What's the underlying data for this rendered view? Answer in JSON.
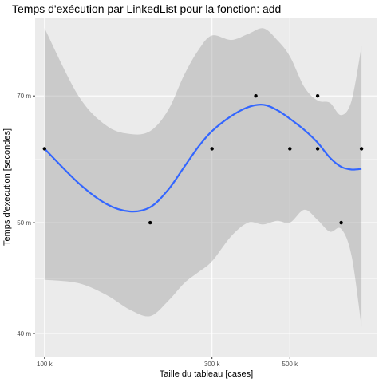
{
  "chart_data": {
    "type": "scatter",
    "title": "Temps d'exécution par LinkedList pour la fonction: add",
    "xlabel": "Taille du tableau [cases]",
    "ylabel": "Temps d'execution [secondes]",
    "x_scale": "log",
    "y_scale": "reciprocal",
    "xlim": [
      94000,
      888000
    ],
    "ylim": [
      38.4,
      93.0
    ],
    "x_ticks": [
      {
        "value": 100000,
        "label": "100 k"
      },
      {
        "value": 300000,
        "label": "300 k"
      },
      {
        "value": 500000,
        "label": "500 k"
      }
    ],
    "x_minor_ticks": [
      173000,
      387000,
      650000
    ],
    "y_ticks": [
      {
        "value": 40,
        "label": "40 m"
      },
      {
        "value": 50,
        "label": "50 m"
      },
      {
        "value": 70,
        "label": "70 m"
      }
    ],
    "y_minor_ticks": [
      44.4,
      58.3,
      100
    ],
    "points": [
      {
        "x": 100000,
        "y": 60
      },
      {
        "x": 200000,
        "y": 50
      },
      {
        "x": 300000,
        "y": 60
      },
      {
        "x": 400000,
        "y": 70
      },
      {
        "x": 500000,
        "y": 60
      },
      {
        "x": 600000,
        "y": 70
      },
      {
        "x": 600000,
        "y": 60
      },
      {
        "x": 700000,
        "y": 50
      },
      {
        "x": 800000,
        "y": 60
      }
    ],
    "smooth": {
      "method": "loess",
      "color": "#3366ff",
      "fit": [
        {
          "x": 100000,
          "y": 60.0
        },
        {
          "x": 125000,
          "y": 54.9
        },
        {
          "x": 150000,
          "y": 52.2
        },
        {
          "x": 175000,
          "y": 51.3
        },
        {
          "x": 200000,
          "y": 51.8
        },
        {
          "x": 225000,
          "y": 54.0
        },
        {
          "x": 250000,
          "y": 57.2
        },
        {
          "x": 275000,
          "y": 60.4
        },
        {
          "x": 300000,
          "y": 63.0
        },
        {
          "x": 340000,
          "y": 65.8
        },
        {
          "x": 380000,
          "y": 67.6
        },
        {
          "x": 420000,
          "y": 68.1
        },
        {
          "x": 460000,
          "y": 67.0
        },
        {
          "x": 500000,
          "y": 65.3
        },
        {
          "x": 550000,
          "y": 63.2
        },
        {
          "x": 600000,
          "y": 61.0
        },
        {
          "x": 650000,
          "y": 58.6
        },
        {
          "x": 700000,
          "y": 57.2
        },
        {
          "x": 750000,
          "y": 56.8
        },
        {
          "x": 800000,
          "y": 56.9
        }
      ],
      "ci_upper": [
        {
          "x": 100000,
          "y": 89.0
        },
        {
          "x": 125000,
          "y": 70.0
        },
        {
          "x": 150000,
          "y": 64.0
        },
        {
          "x": 175000,
          "y": 62.5
        },
        {
          "x": 200000,
          "y": 63.0
        },
        {
          "x": 225000,
          "y": 67.0
        },
        {
          "x": 250000,
          "y": 75.0
        },
        {
          "x": 275000,
          "y": 82.0
        },
        {
          "x": 300000,
          "y": 86.5
        },
        {
          "x": 340000,
          "y": 85.0
        },
        {
          "x": 380000,
          "y": 87.0
        },
        {
          "x": 420000,
          "y": 89.0
        },
        {
          "x": 460000,
          "y": 85.0
        },
        {
          "x": 500000,
          "y": 80.0
        },
        {
          "x": 550000,
          "y": 72.0
        },
        {
          "x": 600000,
          "y": 69.0
        },
        {
          "x": 650000,
          "y": 68.5
        },
        {
          "x": 700000,
          "y": 66.0
        },
        {
          "x": 750000,
          "y": 69.0
        },
        {
          "x": 800000,
          "y": 83.0
        }
      ],
      "ci_lower": [
        {
          "x": 100000,
          "y": 44.3
        },
        {
          "x": 125000,
          "y": 44.0
        },
        {
          "x": 150000,
          "y": 43.0
        },
        {
          "x": 175000,
          "y": 41.8
        },
        {
          "x": 200000,
          "y": 41.3
        },
        {
          "x": 225000,
          "y": 42.5
        },
        {
          "x": 250000,
          "y": 44.0
        },
        {
          "x": 275000,
          "y": 45.0
        },
        {
          "x": 300000,
          "y": 46.0
        },
        {
          "x": 340000,
          "y": 48.5
        },
        {
          "x": 380000,
          "y": 50.0
        },
        {
          "x": 420000,
          "y": 49.8
        },
        {
          "x": 460000,
          "y": 50.2
        },
        {
          "x": 500000,
          "y": 50.0
        },
        {
          "x": 550000,
          "y": 51.5
        },
        {
          "x": 600000,
          "y": 50.3
        },
        {
          "x": 650000,
          "y": 49.0
        },
        {
          "x": 700000,
          "y": 49.3
        },
        {
          "x": 750000,
          "y": 46.5
        },
        {
          "x": 800000,
          "y": 40.5
        }
      ]
    },
    "colors": {
      "panel": "#ebebeb",
      "grid": "#ffffff",
      "ribbon": "#999999",
      "point": "#000000",
      "line": "#3366ff"
    },
    "grid": true,
    "legend": "none"
  }
}
